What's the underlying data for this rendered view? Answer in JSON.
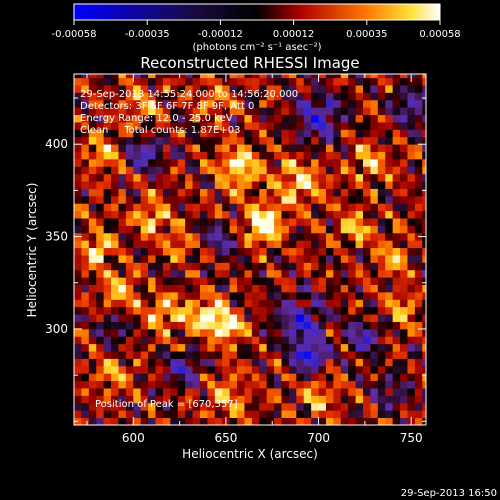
{
  "chart_data": {
    "type": "heatmap",
    "title": "Reconstructed RHESSI Image",
    "xlabel": "Heliocentric X (arcsec)",
    "ylabel": "Heliocentric Y (arcsec)",
    "xlim": [
      568,
      758
    ],
    "ylim": [
      248,
      438
    ],
    "xticks": [
      600,
      650,
      700,
      750
    ],
    "yticks": [
      300,
      350,
      400
    ],
    "colorbar": {
      "ticks": [
        "-0.00058",
        "-0.00035",
        "-0.00012",
        "0.00012",
        "0.00035",
        "0.00058"
      ],
      "units": "(photons cm⁻² s⁻¹ asec⁻²)",
      "range": [
        -0.00058,
        0.00058
      ],
      "colormap": "RHESSI (blue-black-red-yellow-white)"
    },
    "annotations": {
      "line1": "29-Sep-2013 14:55:24.000 to 14:56:20.000",
      "line2": "Detectors: 3F 5F 6F 7F 8F 9F, Att 0",
      "line3": "Energy Range: 12.0 - 25.0 keV",
      "line4": "Clean     Total counts: 1.87E+03",
      "peak": "Position of Peak = [670,357]"
    },
    "peak_position": [
      670,
      357
    ],
    "timestamp": "29-Sep-2013 16:50",
    "colors": {
      "background": "#000000",
      "text": "#ffffff",
      "cmap_blue": "#0000ff",
      "cmap_purple": "#6a2aa8",
      "cmap_red": "#cc1500",
      "cmap_orange": "#ff8a00",
      "cmap_yellow": "#ffe63a",
      "cmap_white": "#ffffff"
    },
    "blobs": [
      {
        "x": 670,
        "y": 357,
        "v": 1.0,
        "s": 7
      },
      {
        "x": 657,
        "y": 388,
        "v": 0.75,
        "s": 8
      },
      {
        "x": 690,
        "y": 380,
        "v": 0.6,
        "s": 9
      },
      {
        "x": 580,
        "y": 343,
        "v": 0.7,
        "s": 6
      },
      {
        "x": 593,
        "y": 322,
        "v": 0.72,
        "s": 6
      },
      {
        "x": 617,
        "y": 309,
        "v": 0.65,
        "s": 7
      },
      {
        "x": 640,
        "y": 307,
        "v": 0.78,
        "s": 7
      },
      {
        "x": 652,
        "y": 301,
        "v": 0.72,
        "s": 6
      },
      {
        "x": 610,
        "y": 360,
        "v": 0.55,
        "s": 7
      },
      {
        "x": 585,
        "y": 395,
        "v": 0.5,
        "s": 8
      },
      {
        "x": 603,
        "y": 420,
        "v": 0.5,
        "s": 7
      },
      {
        "x": 644,
        "y": 425,
        "v": 0.45,
        "s": 7
      },
      {
        "x": 728,
        "y": 390,
        "v": 0.55,
        "s": 7
      },
      {
        "x": 740,
        "y": 338,
        "v": 0.62,
        "s": 6
      },
      {
        "x": 720,
        "y": 355,
        "v": 0.55,
        "s": 6
      },
      {
        "x": 745,
        "y": 310,
        "v": 0.55,
        "s": 6
      },
      {
        "x": 700,
        "y": 265,
        "v": 0.5,
        "s": 7
      },
      {
        "x": 650,
        "y": 265,
        "v": 0.5,
        "s": 8
      },
      {
        "x": 590,
        "y": 275,
        "v": 0.45,
        "s": 7
      },
      {
        "x": 625,
        "y": 345,
        "v": 0.45,
        "s": 5
      },
      {
        "x": 700,
        "y": 415,
        "v": -0.75,
        "s": 9
      },
      {
        "x": 695,
        "y": 285,
        "v": -1.0,
        "s": 6
      },
      {
        "x": 690,
        "y": 305,
        "v": -0.8,
        "s": 9
      },
      {
        "x": 725,
        "y": 295,
        "v": -0.65,
        "s": 7
      },
      {
        "x": 605,
        "y": 395,
        "v": -0.7,
        "s": 7
      },
      {
        "x": 648,
        "y": 348,
        "v": -0.55,
        "s": 6
      },
      {
        "x": 628,
        "y": 278,
        "v": -0.6,
        "s": 7
      },
      {
        "x": 588,
        "y": 300,
        "v": -0.55,
        "s": 5
      },
      {
        "x": 750,
        "y": 420,
        "v": -0.6,
        "s": 7
      },
      {
        "x": 740,
        "y": 265,
        "v": -0.45,
        "s": 6
      }
    ]
  }
}
